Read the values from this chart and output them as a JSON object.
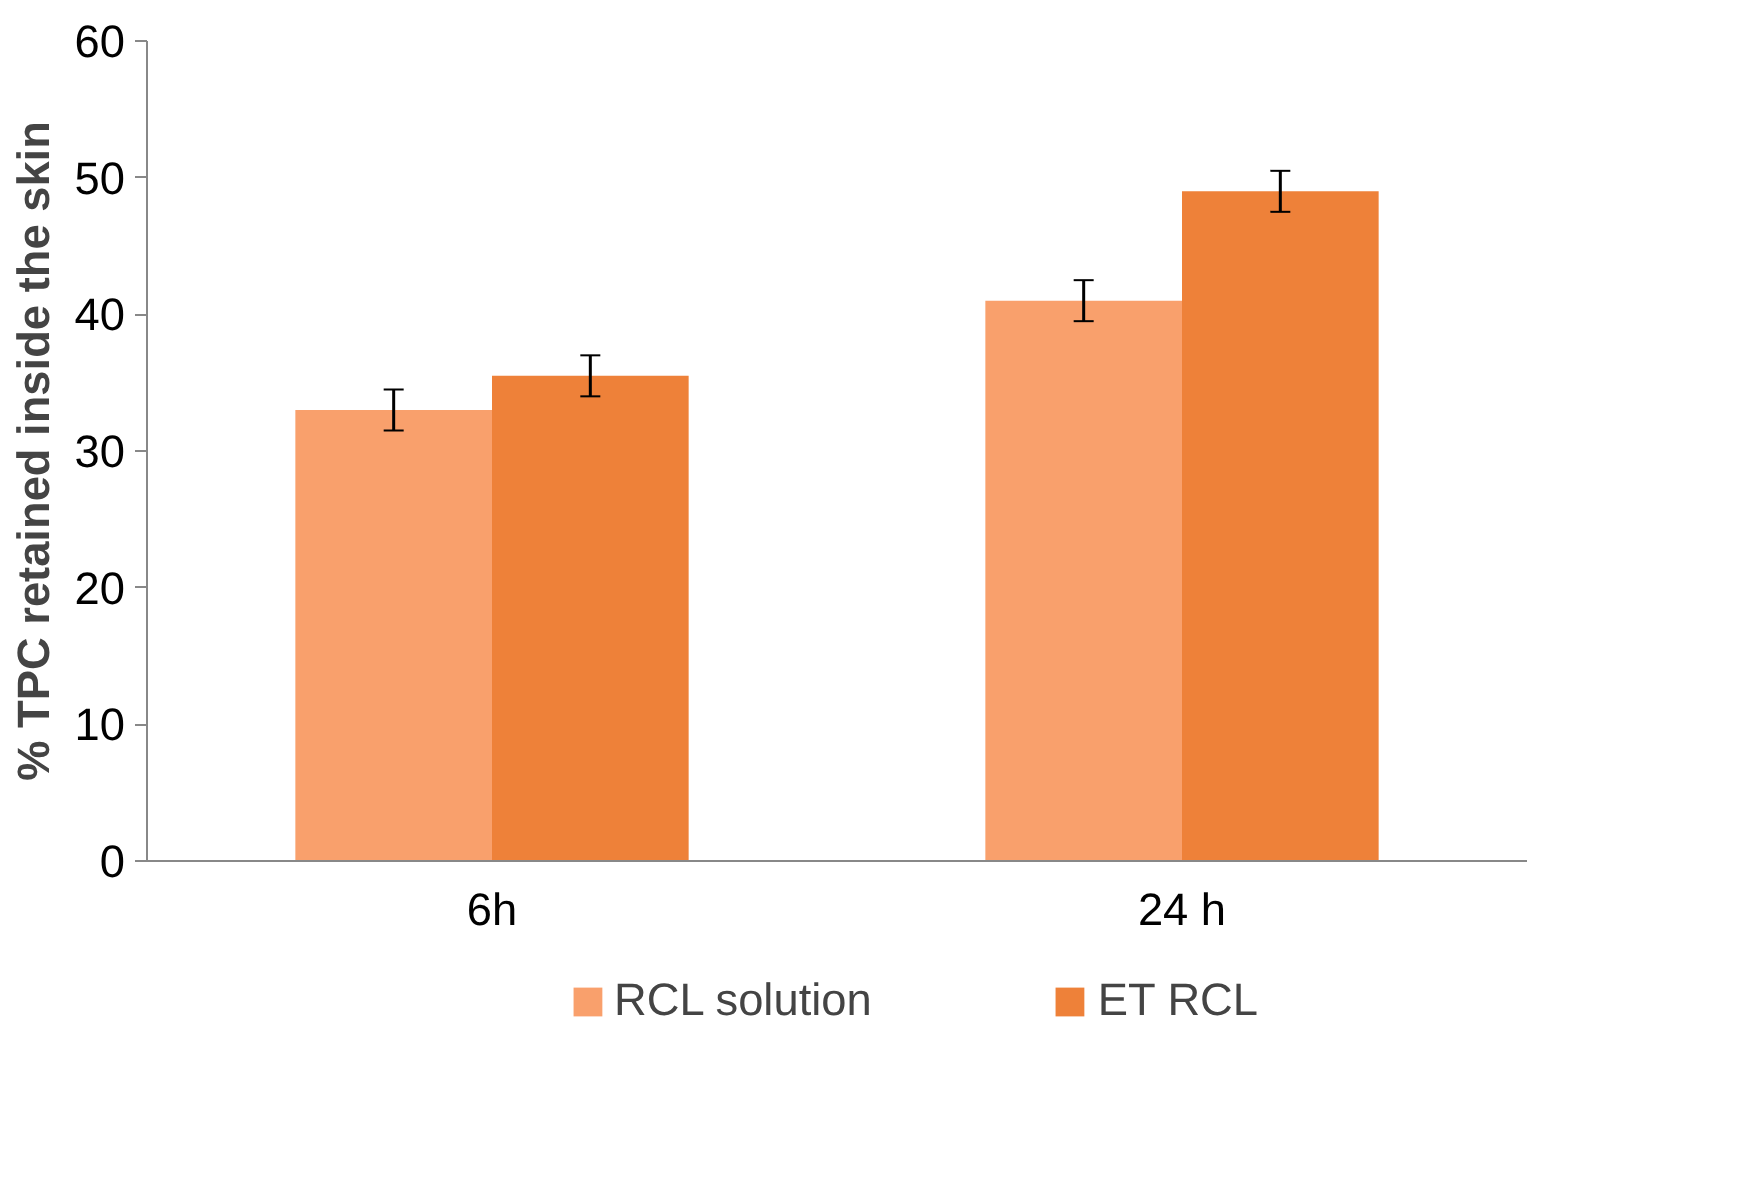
{
  "chart_data": {
    "type": "bar",
    "ylabel": "% TPC retained inside the skin",
    "categories": [
      "6h",
      "24 h"
    ],
    "series": [
      {
        "name": "RCL solution",
        "color": "#f9a06c",
        "values": [
          33,
          41
        ],
        "errors": [
          1.5,
          1.5
        ]
      },
      {
        "name": "ET RCL",
        "color": "#ee8139",
        "values": [
          35.5,
          49
        ],
        "errors": [
          1.5,
          1.5
        ]
      }
    ],
    "ylim": [
      0,
      60
    ],
    "yticks": [
      0,
      10,
      20,
      30,
      40,
      50,
      60
    ],
    "grid": false,
    "legend": "bottom"
  }
}
